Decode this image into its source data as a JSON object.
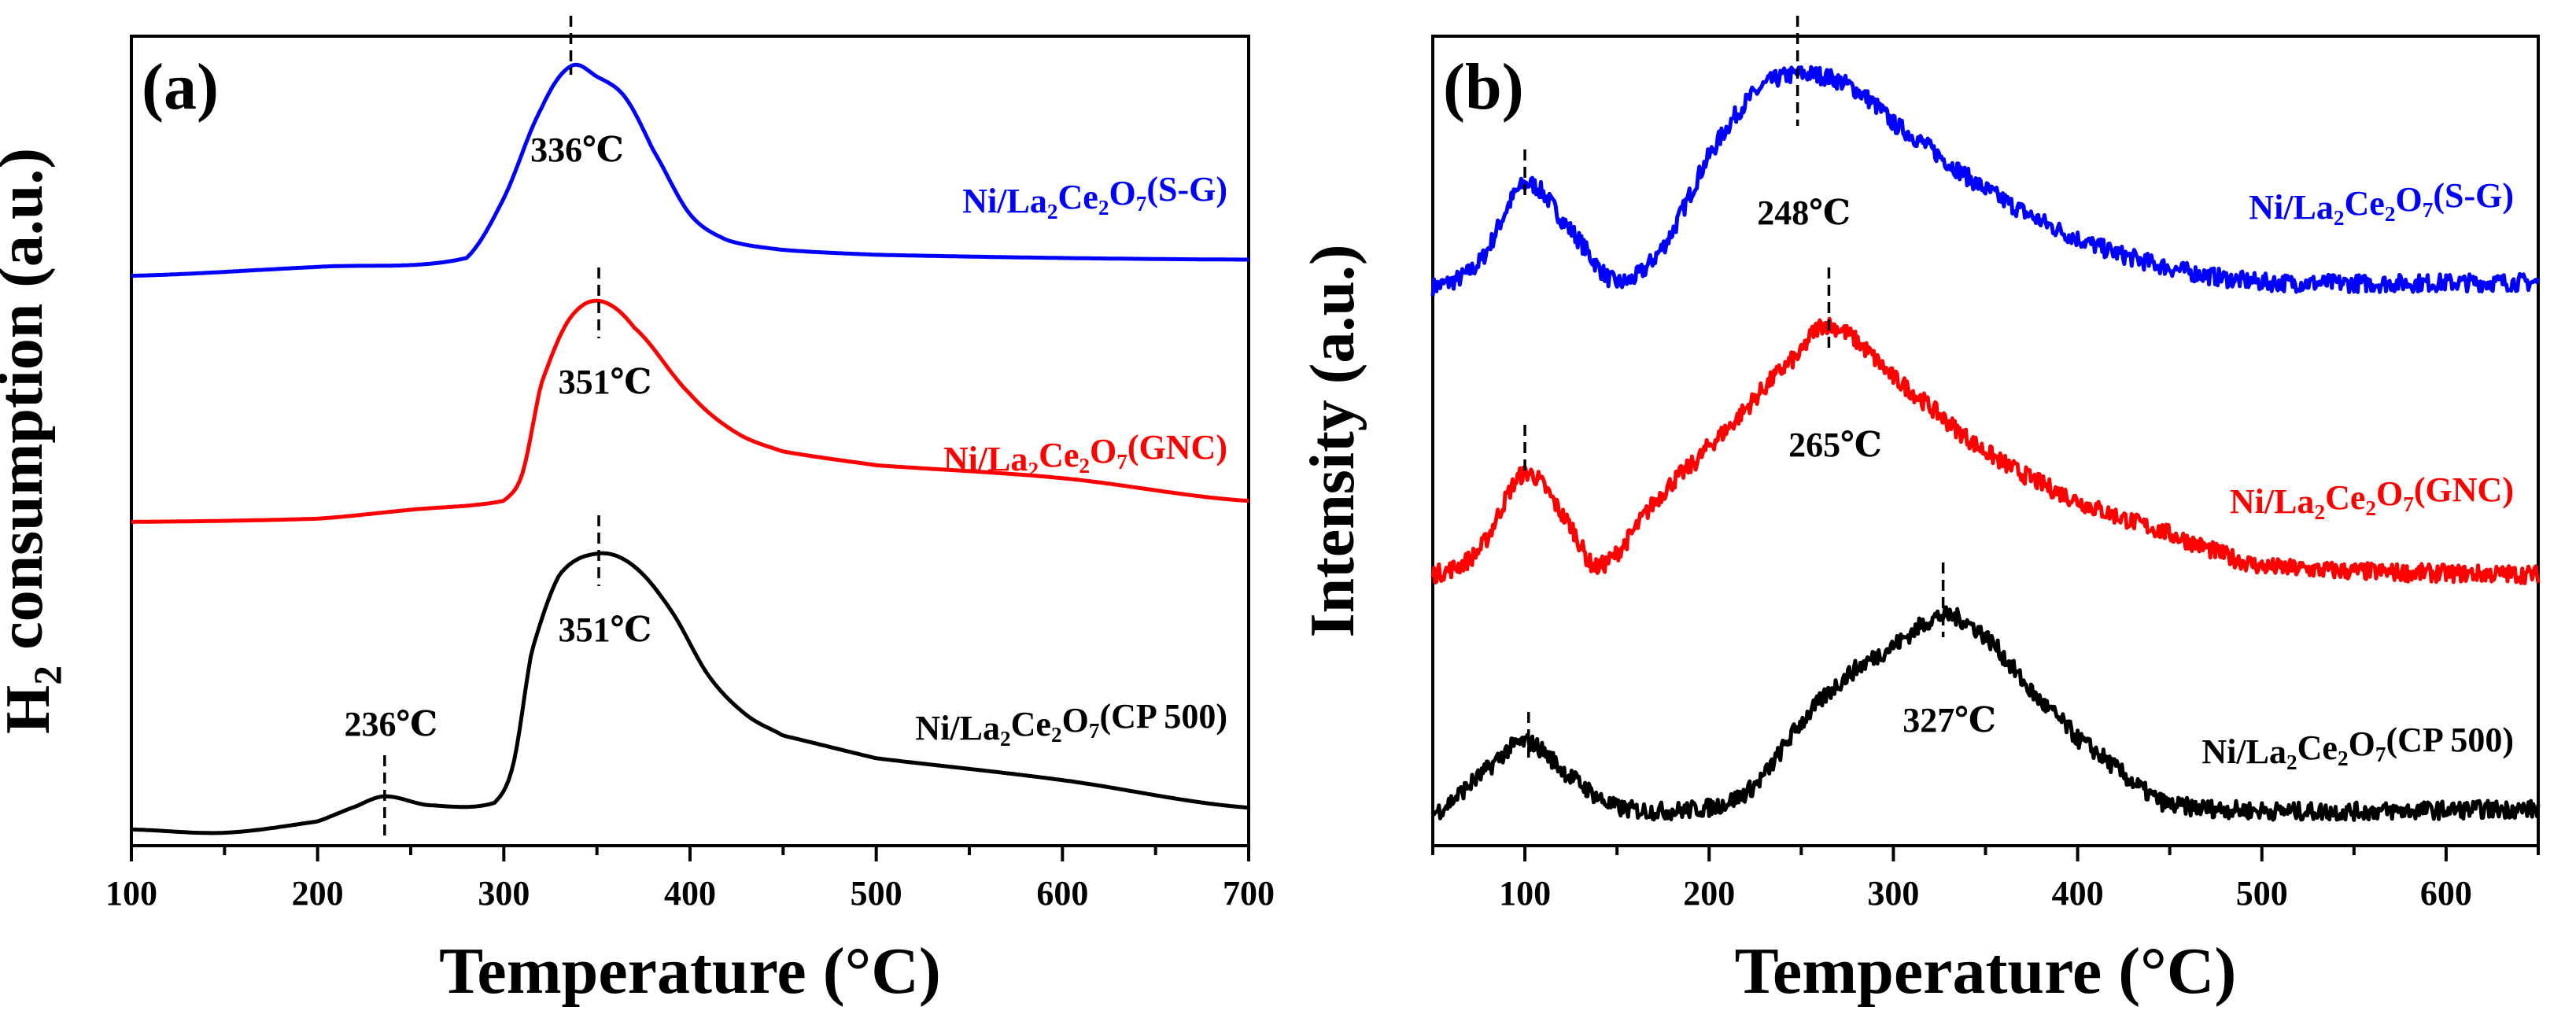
{
  "chart_data": [
    {
      "type": "line",
      "panel_label": "(a)",
      "xlabel": "Temperature (°C)",
      "ylabel": "H2 consumption (a.u.)",
      "xlim": [
        100,
        700
      ],
      "ylim": [
        0,
        100
      ],
      "xticks": [
        100,
        200,
        300,
        400,
        500,
        600,
        700
      ],
      "grid": false,
      "series": [
        {
          "name": "Ni/La2Ce2O7(S-G)",
          "color": "#0000ff",
          "x": [
            100,
            200,
            280,
            300,
            320,
            336,
            350,
            365,
            380,
            400,
            420,
            450,
            500,
            600,
            700
          ],
          "y": [
            70.4,
            71.5,
            72.6,
            80,
            91,
            96.3,
            95,
            92.5,
            86,
            78,
            74.8,
            73.6,
            73,
            72.6,
            72.4
          ]
        },
        {
          "name": "Ni/La2Ce2O7(GNC)",
          "color": "#ff0000",
          "x": [
            100,
            200,
            250,
            300,
            310,
            320,
            335,
            351,
            370,
            400,
            425,
            450,
            500,
            600,
            700
          ],
          "y": [
            40,
            40.4,
            41.5,
            42.6,
            46,
            57,
            65,
            67.3,
            64,
            55.8,
            51,
            48.7,
            47,
            45.4,
            42.6
          ]
        },
        {
          "name": "Ni/La2Ce2O7(CP 500)",
          "color": "#000000",
          "x": [
            100,
            150,
            200,
            220,
            236,
            260,
            295,
            305,
            315,
            330,
            351,
            370,
            390,
            410,
            430,
            450,
            500,
            600,
            700
          ],
          "y": [
            2,
            1.6,
            3,
            4.8,
            6.1,
            5,
            5.3,
            10,
            24,
            33.5,
            36.1,
            34.5,
            29,
            21,
            16.2,
            13.6,
            10.8,
            8.1,
            4.7
          ]
        }
      ],
      "annotations": [
        {
          "text": "336℃",
          "x": 336,
          "series": 0
        },
        {
          "text": "351℃",
          "x": 351,
          "series": 1
        },
        {
          "text": "351℃",
          "x": 351,
          "series": 2
        },
        {
          "text": "236℃",
          "x": 236,
          "series": 2
        }
      ]
    },
    {
      "type": "line",
      "panel_label": "(b)",
      "xlabel": "Temperature (°C)",
      "ylabel": "Intensity (a.u.)",
      "xlim": [
        50,
        650
      ],
      "ylim": [
        0,
        100
      ],
      "xticks": [
        100,
        200,
        300,
        400,
        500,
        600
      ],
      "grid": false,
      "series": [
        {
          "name": "Ni/La2Ce2O7(S-G)",
          "color": "#0000ff",
          "x": [
            50,
            75,
            100,
            125,
            150,
            175,
            200,
            225,
            248,
            275,
            300,
            350,
            400,
            450,
            500,
            650
          ],
          "y": [
            69,
            72,
            81.7,
            76,
            69.6,
            74,
            85.2,
            93,
            95.3,
            94,
            89.2,
            81.1,
            75,
            71.4,
            69.6,
            69.6
          ]
        },
        {
          "name": "Ni/La2Ce2O7(GNC)",
          "color": "#ff0000",
          "x": [
            50,
            75,
            100,
            125,
            140,
            175,
            200,
            250,
            265,
            300,
            350,
            400,
            450,
            500,
            650
          ],
          "y": [
            33.5,
            36.5,
            46,
            39.5,
            34.5,
            43.6,
            49.5,
            60.8,
            64.3,
            57.8,
            48.7,
            42.6,
            38.5,
            34.5,
            33.5
          ]
        },
        {
          "name": "Ni/La2Ce2O7(CP 500)",
          "color": "#000000",
          "x": [
            50,
            75,
            100,
            125,
            150,
            200,
            225,
            250,
            275,
            300,
            327,
            350,
            375,
            400,
            450,
            650
          ],
          "y": [
            4,
            8.5,
            12.8,
            8.5,
            4.7,
            4.7,
            7.5,
            15.2,
            21,
            24.7,
            28.4,
            25.8,
            19,
            13.2,
            5,
            4.5
          ]
        }
      ],
      "annotations": [
        {
          "text": "248℃",
          "x": 248,
          "series": 0
        },
        {
          "text": "265℃",
          "x": 265,
          "series": 1
        },
        {
          "text": "327℃",
          "x": 327,
          "series": 2
        }
      ]
    }
  ]
}
